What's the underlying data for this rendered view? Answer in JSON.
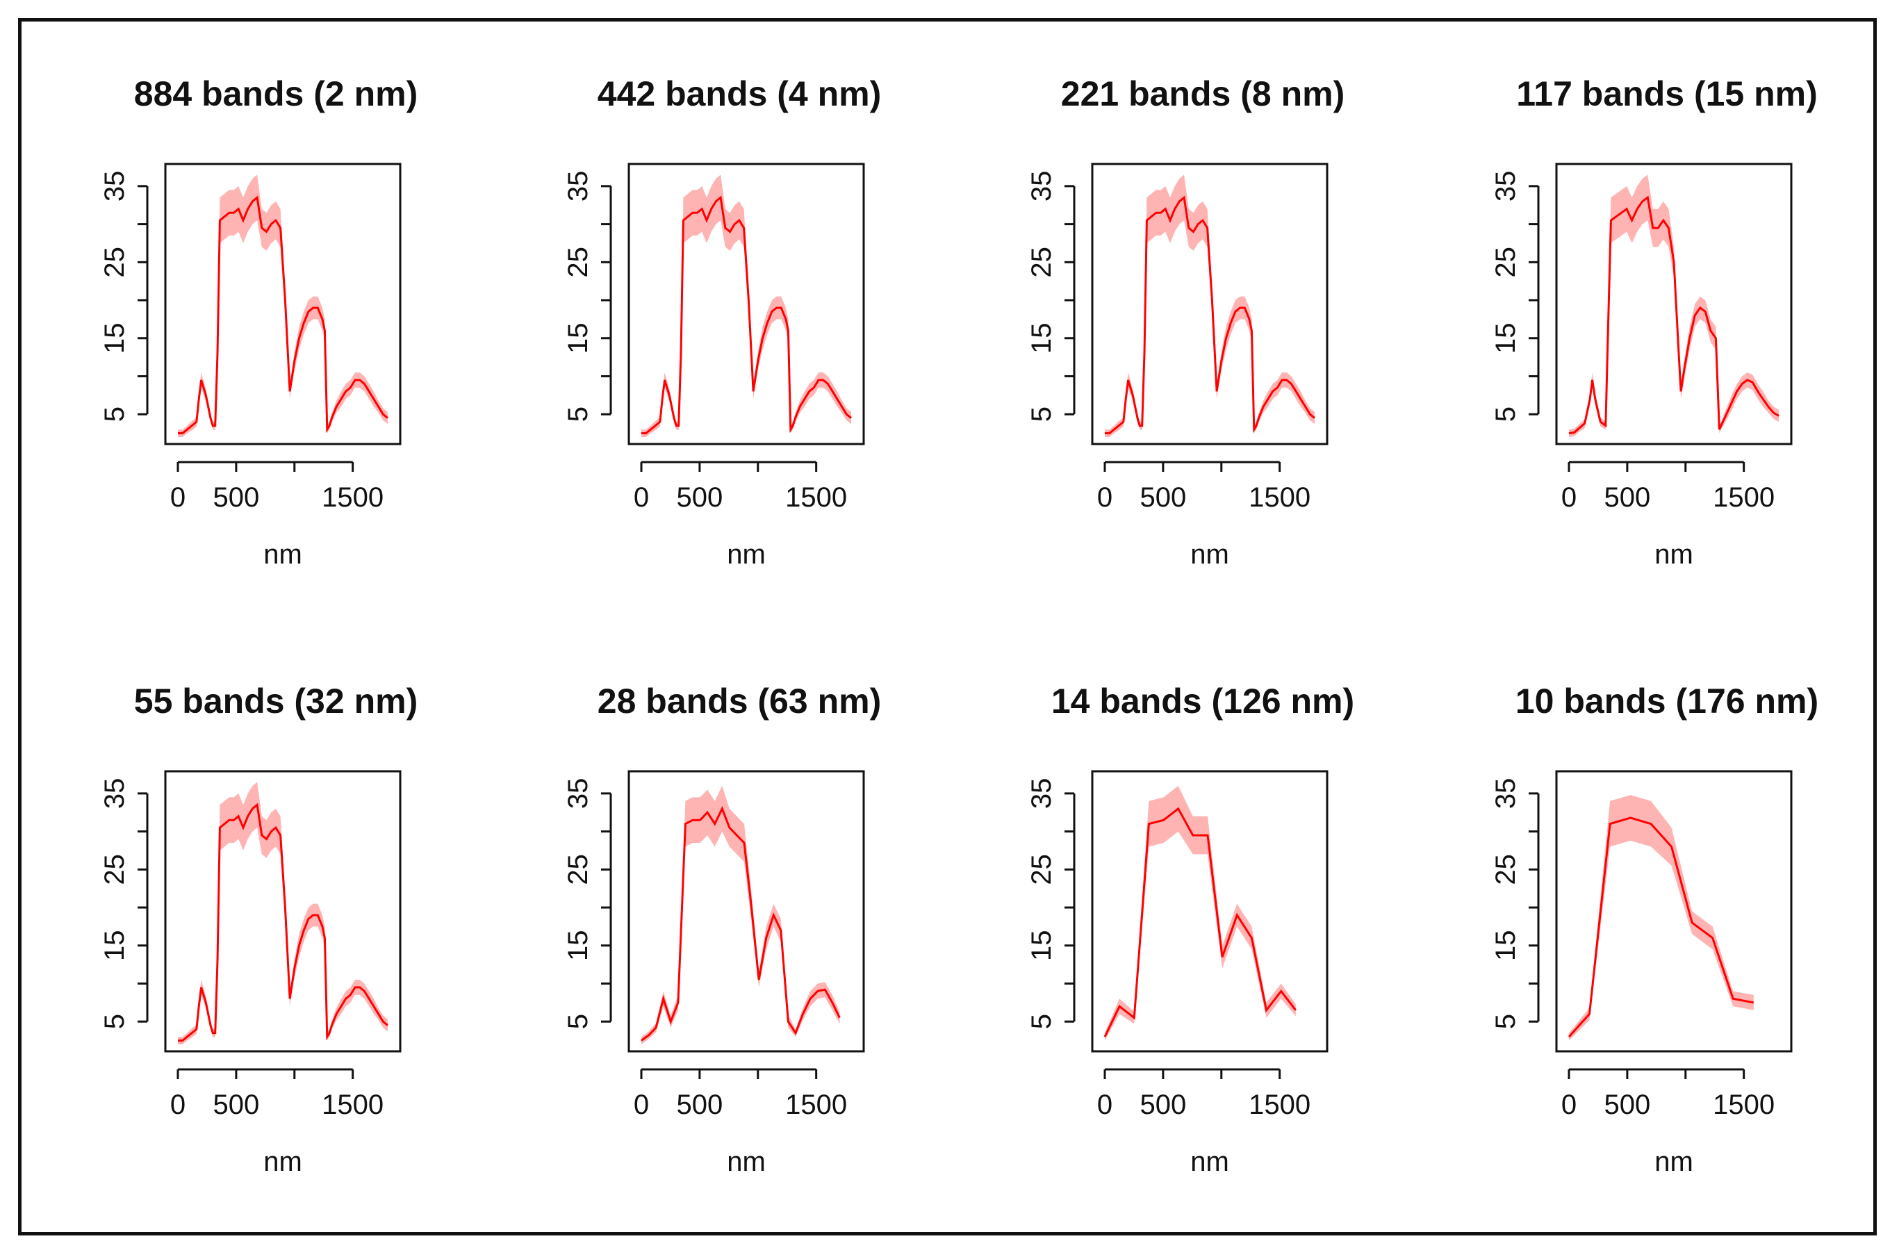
{
  "colors": {
    "line": "#ff0000",
    "band": "#ffb4b4",
    "axis": "#111111",
    "frame": "#111111"
  },
  "chart_data": [
    {
      "type": "line",
      "title": "884 bands (2 nm)",
      "xlabel": "nm",
      "ylabel": "",
      "xlim": [
        0,
        1800
      ],
      "ylim": [
        2,
        37
      ],
      "xticks": [
        "0",
        "500",
        "1500"
      ],
      "yticks": [
        "5",
        "15",
        "25",
        "35"
      ],
      "x": [
        0,
        40,
        80,
        120,
        160,
        180,
        200,
        240,
        280,
        300,
        320,
        340,
        360,
        400,
        440,
        480,
        520,
        560,
        600,
        640,
        680,
        720,
        760,
        800,
        840,
        880,
        920,
        960,
        980,
        1000,
        1040,
        1080,
        1120,
        1160,
        1200,
        1240,
        1260,
        1280,
        1300,
        1320,
        1360,
        1400,
        1440,
        1480,
        1520,
        1560,
        1600,
        1640,
        1680,
        1720,
        1760,
        1800
      ],
      "y": [
        2.5,
        2.5,
        3.0,
        3.5,
        4.0,
        7.0,
        9.5,
        7.5,
        4.5,
        3.5,
        3.5,
        13,
        30.5,
        31,
        31.5,
        31.5,
        32,
        30.5,
        32,
        33,
        33.5,
        29.5,
        29,
        30,
        30.5,
        29.5,
        20,
        8,
        10,
        12,
        15,
        17,
        18.5,
        19,
        19,
        17.5,
        16,
        3,
        3.5,
        4.5,
        6,
        7,
        8,
        8.5,
        9.5,
        9.5,
        9,
        8,
        7,
        6,
        5,
        4.5
      ],
      "spread": [
        0.5,
        0.5,
        0.5,
        0.6,
        0.6,
        0.8,
        1,
        0.8,
        0.6,
        0.5,
        0.6,
        1,
        3,
        3,
        3,
        3,
        3,
        3,
        3,
        3,
        3,
        2.5,
        2.5,
        2.5,
        2.5,
        2.5,
        2,
        1,
        1,
        1.2,
        1.5,
        1.5,
        1.5,
        1.5,
        1.5,
        1.5,
        1.5,
        0.5,
        0.5,
        0.6,
        0.8,
        1,
        1,
        1,
        1,
        1,
        1,
        1,
        1,
        0.8,
        0.8,
        0.8
      ]
    },
    {
      "type": "line",
      "title": "442 bands (4 nm)",
      "xlabel": "nm",
      "ylabel": "",
      "xlim": [
        0,
        1800
      ],
      "ylim": [
        2,
        37
      ],
      "xticks": [
        "0",
        "500",
        "1500"
      ],
      "yticks": [
        "5",
        "15",
        "25",
        "35"
      ],
      "x": [
        0,
        40,
        80,
        120,
        160,
        180,
        200,
        240,
        280,
        300,
        320,
        340,
        360,
        400,
        440,
        480,
        520,
        560,
        600,
        640,
        680,
        720,
        760,
        800,
        840,
        880,
        920,
        960,
        980,
        1000,
        1040,
        1080,
        1120,
        1160,
        1200,
        1240,
        1260,
        1280,
        1300,
        1320,
        1360,
        1400,
        1440,
        1480,
        1520,
        1560,
        1600,
        1640,
        1680,
        1720,
        1760,
        1800
      ],
      "y": [
        2.5,
        2.5,
        3.0,
        3.5,
        4.0,
        7.0,
        9.5,
        7.5,
        4.5,
        3.5,
        3.5,
        13,
        30.5,
        31,
        31.5,
        31.5,
        32,
        30.5,
        32,
        33,
        33.5,
        29.5,
        29,
        30,
        30.5,
        29.5,
        20,
        8,
        10,
        12,
        15,
        17,
        18.5,
        19,
        19,
        17.5,
        16,
        3,
        3.5,
        4.5,
        6,
        7,
        8,
        8.5,
        9.5,
        9.5,
        9,
        8,
        7,
        6,
        5,
        4.5
      ],
      "spread": [
        0.5,
        0.5,
        0.5,
        0.6,
        0.6,
        0.8,
        1,
        0.8,
        0.6,
        0.5,
        0.6,
        1,
        3,
        3,
        3,
        3,
        3,
        3,
        3,
        3,
        3,
        2.5,
        2.5,
        2.5,
        2.5,
        2.5,
        2,
        1,
        1,
        1.2,
        1.5,
        1.5,
        1.5,
        1.5,
        1.5,
        1.5,
        1.5,
        0.5,
        0.5,
        0.6,
        0.8,
        1,
        1,
        1,
        1,
        1,
        1,
        1,
        1,
        0.8,
        0.8,
        0.8
      ]
    },
    {
      "type": "line",
      "title": "221 bands (8 nm)",
      "xlabel": "nm",
      "ylabel": "",
      "xlim": [
        0,
        1800
      ],
      "ylim": [
        2,
        37
      ],
      "xticks": [
        "0",
        "500",
        "1500"
      ],
      "yticks": [
        "5",
        "15",
        "25",
        "35"
      ],
      "x": [
        0,
        40,
        80,
        120,
        160,
        180,
        200,
        240,
        280,
        300,
        320,
        340,
        360,
        400,
        440,
        480,
        520,
        560,
        600,
        640,
        680,
        720,
        760,
        800,
        840,
        880,
        920,
        960,
        980,
        1000,
        1040,
        1080,
        1120,
        1160,
        1200,
        1240,
        1260,
        1280,
        1300,
        1320,
        1360,
        1400,
        1440,
        1480,
        1520,
        1560,
        1600,
        1640,
        1680,
        1720,
        1760,
        1800
      ],
      "y": [
        2.5,
        2.5,
        3.0,
        3.5,
        4.0,
        7.0,
        9.5,
        7.5,
        4.5,
        3.5,
        3.5,
        13,
        30.5,
        31,
        31.5,
        31.5,
        32,
        30.5,
        32,
        33,
        33.5,
        29.5,
        29,
        30,
        30.5,
        29.5,
        20,
        8,
        10,
        12,
        15,
        17,
        18.5,
        19,
        19,
        17.5,
        16,
        3,
        3.5,
        4.5,
        6,
        7,
        8,
        8.5,
        9.5,
        9.5,
        9,
        8,
        7,
        6,
        5,
        4.5
      ],
      "spread": [
        0.5,
        0.5,
        0.5,
        0.6,
        0.6,
        0.8,
        1,
        0.8,
        0.6,
        0.5,
        0.6,
        1,
        3,
        3,
        3,
        3,
        3,
        3,
        3,
        3,
        3,
        2.5,
        2.5,
        2.5,
        2.5,
        2.5,
        2,
        1,
        1,
        1.2,
        1.5,
        1.5,
        1.5,
        1.5,
        1.5,
        1.5,
        1.5,
        0.5,
        0.5,
        0.6,
        0.8,
        1,
        1,
        1,
        1,
        1,
        1,
        1,
        1,
        0.8,
        0.8,
        0.8
      ]
    },
    {
      "type": "line",
      "title": "117 bands (15 nm)",
      "xlabel": "nm",
      "ylabel": "",
      "xlim": [
        0,
        1800
      ],
      "ylim": [
        2,
        37
      ],
      "xticks": [
        "0",
        "500",
        "1500"
      ],
      "yticks": [
        "5",
        "15",
        "25",
        "35"
      ],
      "x": [
        0,
        45,
        90,
        135,
        180,
        200,
        225,
        270,
        315,
        330,
        360,
        405,
        450,
        495,
        540,
        585,
        630,
        675,
        720,
        765,
        810,
        855,
        900,
        945,
        960,
        990,
        1035,
        1080,
        1125,
        1170,
        1215,
        1260,
        1290,
        1305,
        1350,
        1395,
        1440,
        1485,
        1530,
        1575,
        1620,
        1665,
        1710,
        1755,
        1800
      ],
      "y": [
        2.5,
        2.6,
        3.2,
        3.8,
        7,
        9.5,
        7,
        4,
        3.5,
        13,
        30.5,
        31,
        31.5,
        32,
        30.5,
        32,
        33,
        33.5,
        29.5,
        29.5,
        30.5,
        29.5,
        25,
        12,
        8,
        11,
        15,
        18,
        19,
        18.5,
        16,
        15,
        3,
        3.5,
        5,
        6.5,
        8,
        9,
        9.5,
        9.2,
        8,
        7,
        6,
        5.2,
        4.8
      ],
      "spread": [
        0.5,
        0.5,
        0.5,
        0.6,
        0.8,
        1,
        0.8,
        0.6,
        0.5,
        1,
        3,
        3,
        3,
        3,
        3,
        3,
        3,
        3,
        2.5,
        2.5,
        2.5,
        2.5,
        2,
        1,
        1,
        1.2,
        1.5,
        1.5,
        1.5,
        1.5,
        1.5,
        1.5,
        0.5,
        0.5,
        0.8,
        1,
        1,
        1,
        1,
        1,
        1,
        1,
        0.8,
        0.8,
        0.8
      ]
    },
    {
      "type": "line",
      "title": "55 bands (32 nm)",
      "xlabel": "nm",
      "ylabel": "",
      "xlim": [
        0,
        1800
      ],
      "ylim": [
        2,
        37
      ],
      "xticks": [
        "0",
        "500",
        "1500"
      ],
      "yticks": [
        "5",
        "15",
        "25",
        "35"
      ],
      "x": [
        0,
        40,
        80,
        120,
        160,
        180,
        200,
        240,
        280,
        300,
        320,
        340,
        360,
        400,
        440,
        480,
        520,
        560,
        600,
        640,
        680,
        720,
        760,
        800,
        840,
        880,
        920,
        960,
        980,
        1000,
        1040,
        1080,
        1120,
        1160,
        1200,
        1240,
        1260,
        1280,
        1300,
        1320,
        1360,
        1400,
        1440,
        1480,
        1520,
        1560,
        1600,
        1640,
        1680,
        1720,
        1760,
        1800
      ],
      "y": [
        2.5,
        2.5,
        3.0,
        3.5,
        4.0,
        7.0,
        9.5,
        7.5,
        4.5,
        3.5,
        3.5,
        13,
        30.5,
        31,
        31.5,
        31.5,
        32,
        30.5,
        32,
        33,
        33.5,
        29.5,
        29,
        30,
        30.5,
        29.5,
        20,
        8,
        10,
        12,
        15,
        17,
        18.5,
        19,
        19,
        17.5,
        16,
        3,
        3.5,
        4.5,
        6,
        7,
        8,
        8.5,
        9.5,
        9.5,
        9,
        8,
        7,
        6,
        5,
        4.5
      ],
      "spread": [
        0.5,
        0.5,
        0.5,
        0.6,
        0.6,
        0.8,
        1,
        0.8,
        0.6,
        0.5,
        0.6,
        1,
        3,
        3,
        3,
        3,
        3,
        3,
        3,
        3,
        3,
        2.5,
        2.5,
        2.5,
        2.5,
        2.5,
        2,
        1,
        1,
        1.2,
        1.5,
        1.5,
        1.5,
        1.5,
        1.5,
        1.5,
        1.5,
        0.5,
        0.5,
        0.6,
        0.8,
        1,
        1,
        1,
        1,
        1,
        1,
        1,
        1,
        0.8,
        0.8,
        0.8
      ]
    },
    {
      "type": "line",
      "title": "28 bands (63 nm)",
      "xlabel": "nm",
      "ylabel": "",
      "xlim": [
        0,
        1800
      ],
      "ylim": [
        2,
        37
      ],
      "xticks": [
        "0",
        "500",
        "1500"
      ],
      "yticks": [
        "5",
        "15",
        "25",
        "35"
      ],
      "x": [
        0,
        63,
        126,
        189,
        252,
        315,
        378,
        441,
        504,
        567,
        630,
        693,
        756,
        819,
        882,
        945,
        1008,
        1071,
        1134,
        1197,
        1260,
        1323,
        1386,
        1449,
        1512,
        1575,
        1638,
        1701
      ],
      "y": [
        2.5,
        3.2,
        4.2,
        8,
        5,
        7.5,
        31,
        31.5,
        31.5,
        32.5,
        31,
        33,
        30.5,
        29.5,
        28.5,
        20,
        10.5,
        16,
        19,
        17,
        5,
        3.5,
        6,
        8,
        9,
        9.2,
        7.5,
        5.5
      ],
      "spread": [
        0.5,
        0.5,
        0.6,
        1,
        0.8,
        1,
        3,
        3,
        3,
        3,
        3,
        3,
        2.5,
        2.5,
        2.5,
        2,
        1,
        1.5,
        1.5,
        1.5,
        0.8,
        0.5,
        0.8,
        1,
        1,
        1,
        1,
        0.8
      ]
    },
    {
      "type": "line",
      "title": "14 bands (126 nm)",
      "xlabel": "nm",
      "ylabel": "",
      "xlim": [
        0,
        1800
      ],
      "ylim": [
        2,
        37
      ],
      "xticks": [
        "0",
        "500",
        "1500"
      ],
      "yticks": [
        "5",
        "15",
        "25",
        "35"
      ],
      "x": [
        0,
        126,
        252,
        378,
        504,
        630,
        756,
        882,
        1008,
        1134,
        1260,
        1386,
        1512,
        1638
      ],
      "y": [
        3,
        7,
        5.5,
        31,
        31.5,
        33,
        29.5,
        29.5,
        13.5,
        19,
        16,
        6.5,
        9,
        6.5
      ],
      "spread": [
        0.5,
        1,
        0.8,
        3,
        3,
        3,
        2.5,
        2.5,
        1.5,
        1.5,
        1.5,
        1,
        1,
        0.8
      ]
    },
    {
      "type": "line",
      "title": "10 bands (176 nm)",
      "xlabel": "nm",
      "ylabel": "",
      "xlim": [
        0,
        1800
      ],
      "ylim": [
        2,
        37
      ],
      "xticks": [
        "0",
        "500",
        "1500"
      ],
      "yticks": [
        "5",
        "15",
        "25",
        "35"
      ],
      "x": [
        0,
        176,
        352,
        528,
        704,
        880,
        1056,
        1232,
        1408,
        1584
      ],
      "y": [
        3,
        6,
        31,
        31.8,
        31,
        28,
        18,
        16,
        8,
        7.5
      ],
      "spread": [
        0.5,
        0.8,
        3,
        3,
        3,
        2.5,
        1.5,
        1.5,
        1,
        1
      ]
    }
  ]
}
